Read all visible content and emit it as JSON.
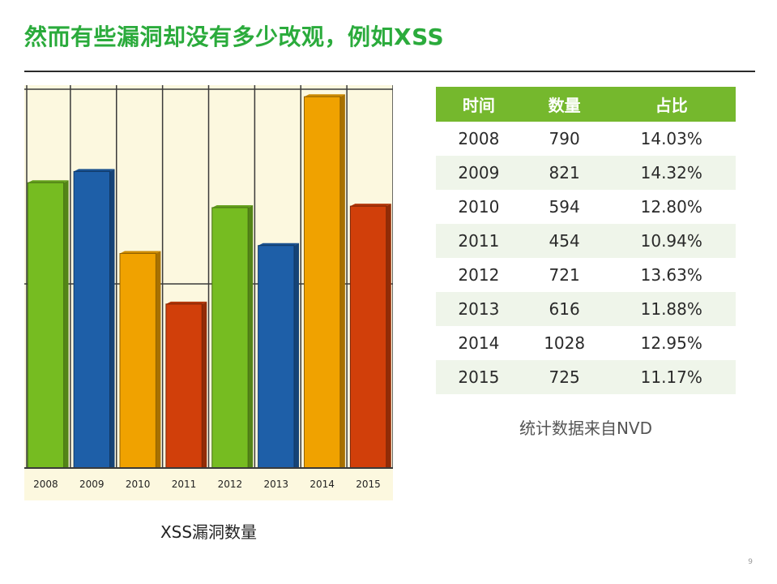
{
  "slide": {
    "title": "然而有些漏洞却没有多少改观，例如XSS",
    "page_number": "9"
  },
  "chart_caption": "XSS漏洞数量",
  "chart_data": {
    "type": "bar",
    "title": "",
    "xlabel": "",
    "ylabel": "",
    "categories": [
      "2008",
      "2009",
      "2010",
      "2011",
      "2012",
      "2013",
      "2014",
      "2015"
    ],
    "values": [
      790,
      821,
      594,
      454,
      721,
      616,
      1028,
      725
    ],
    "bar_colors": [
      "#76bc21",
      "#1e5fa8",
      "#f0a200",
      "#d13f0a",
      "#76bc21",
      "#1e5fa8",
      "#f0a200",
      "#d13f0a"
    ],
    "ylim": [
      0,
      1060
    ],
    "grid": true,
    "background": "#fcf8df"
  },
  "table": {
    "headers": [
      "时间",
      "数量",
      "占比"
    ],
    "rows": [
      [
        "2008",
        "790",
        "14.03%"
      ],
      [
        "2009",
        "821",
        "14.32%"
      ],
      [
        "2010",
        "594",
        "12.80%"
      ],
      [
        "2011",
        "454",
        "10.94%"
      ],
      [
        "2012",
        "721",
        "13.63%"
      ],
      [
        "2013",
        "616",
        "11.88%"
      ],
      [
        "2014",
        "1028",
        "12.95%"
      ],
      [
        "2015",
        "725",
        "11.17%"
      ]
    ],
    "header_color": "#75b82d",
    "stripe_color": "#eff5ea"
  },
  "table_note": "统计数据来自NVD"
}
